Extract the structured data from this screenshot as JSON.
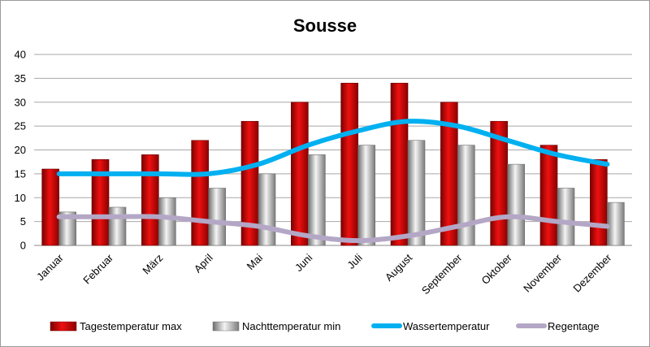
{
  "chart_data": {
    "type": "bar",
    "title": "Sousse",
    "xlabel": "",
    "ylabel": "",
    "ylim": [
      0,
      40
    ],
    "yticks": [
      0,
      5,
      10,
      15,
      20,
      25,
      30,
      35,
      40
    ],
    "grid": true,
    "legend_position": "bottom",
    "categories": [
      "Januar",
      "Februar",
      "März",
      "April",
      "Mai",
      "Juni",
      "Juli",
      "August",
      "September",
      "Oktober",
      "November",
      "Dezember"
    ],
    "series": [
      {
        "name": "Tagestemperatur max",
        "kind": "bar",
        "color": "#cc0000",
        "values": [
          16,
          18,
          19,
          22,
          26,
          30,
          34,
          34,
          30,
          26,
          21,
          18
        ]
      },
      {
        "name": "Nachttemperatur min",
        "kind": "bar",
        "color": "#a6a6a6",
        "values": [
          7,
          8,
          10,
          12,
          15,
          19,
          21,
          22,
          21,
          17,
          12,
          9
        ]
      },
      {
        "name": "Wassertemperatur",
        "kind": "line",
        "color": "#00b0f0",
        "values": [
          15,
          15,
          15,
          15,
          17,
          21,
          24,
          26,
          25,
          22,
          19,
          17
        ]
      },
      {
        "name": "Regentage",
        "kind": "line",
        "color": "#b4a7c6",
        "values": [
          6,
          6,
          6,
          5,
          4,
          2,
          1,
          2,
          4,
          6,
          5,
          4
        ]
      }
    ]
  }
}
